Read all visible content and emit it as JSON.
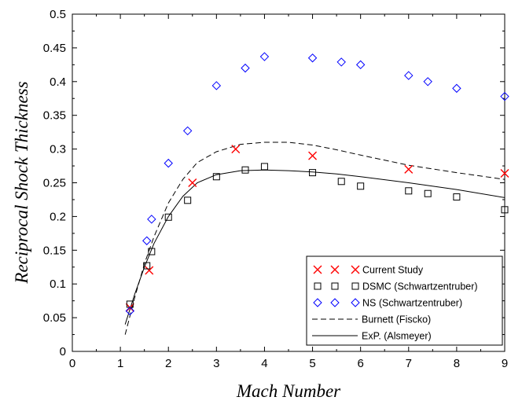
{
  "chart_data": {
    "type": "scatter",
    "title": "",
    "xlabel": "Mach Number",
    "ylabel": "Reciprocal Shock Thickness",
    "xlim": [
      0,
      9
    ],
    "ylim": [
      0,
      0.5
    ],
    "x_ticks": [
      "0",
      "1",
      "2",
      "3",
      "4",
      "5",
      "6",
      "7",
      "8",
      "9"
    ],
    "y_ticks": [
      "0",
      "0.05",
      "0.1",
      "0.15",
      "0.2",
      "0.25",
      "0.3",
      "0.35",
      "0.4",
      "0.45",
      "0.5"
    ],
    "grid": false,
    "legend_position": "bottom-right",
    "series": [
      {
        "name": "Current Study",
        "marker": "x",
        "color": "#ff0000",
        "x": [
          1.2,
          1.6,
          2.5,
          3.4,
          5.0,
          7.0,
          9.0
        ],
        "y": [
          0.065,
          0.12,
          0.25,
          0.3,
          0.29,
          0.27,
          0.264
        ]
      },
      {
        "name": "DSMC (Schwartzentruber)",
        "marker": "square",
        "color": "#000000",
        "x": [
          1.2,
          1.55,
          1.65,
          2.0,
          2.4,
          3.0,
          3.6,
          4.0,
          5.0,
          5.6,
          6.0,
          7.0,
          7.4,
          8.0,
          9.0
        ],
        "y": [
          0.07,
          0.127,
          0.148,
          0.199,
          0.224,
          0.259,
          0.269,
          0.274,
          0.265,
          0.252,
          0.245,
          0.238,
          0.234,
          0.229,
          0.21
        ]
      },
      {
        "name": "NS (Schwartzentruber)",
        "marker": "diamond",
        "color": "#0000ff",
        "x": [
          1.2,
          1.55,
          1.65,
          2.0,
          2.4,
          3.0,
          3.6,
          4.0,
          5.0,
          5.6,
          6.0,
          7.0,
          7.4,
          8.0,
          9.0
        ],
        "y": [
          0.06,
          0.164,
          0.196,
          0.279,
          0.327,
          0.394,
          0.42,
          0.437,
          0.435,
          0.429,
          0.425,
          0.409,
          0.4,
          0.39,
          0.378
        ]
      },
      {
        "name": "Burnett (Fiscko)",
        "line": "dashed",
        "color": "#000000",
        "x": [
          1.1,
          1.3,
          1.5,
          1.7,
          2.0,
          2.3,
          2.6,
          3.0,
          3.5,
          4.0,
          4.5,
          5.0,
          5.5,
          6.0,
          7.0,
          8.0,
          9.0
        ],
        "y": [
          0.025,
          0.08,
          0.13,
          0.17,
          0.22,
          0.255,
          0.28,
          0.296,
          0.307,
          0.31,
          0.31,
          0.306,
          0.299,
          0.291,
          0.276,
          0.265,
          0.255
        ]
      },
      {
        "name": "ExP. (Alsmeyer)",
        "line": "solid",
        "color": "#000000",
        "x": [
          1.1,
          1.3,
          1.5,
          1.7,
          2.0,
          2.3,
          2.6,
          3.0,
          3.5,
          4.0,
          4.5,
          5.0,
          5.5,
          6.0,
          7.0,
          8.0,
          9.0
        ],
        "y": [
          0.04,
          0.085,
          0.125,
          0.16,
          0.2,
          0.23,
          0.25,
          0.262,
          0.268,
          0.269,
          0.268,
          0.266,
          0.263,
          0.259,
          0.25,
          0.24,
          0.228
        ]
      }
    ]
  }
}
